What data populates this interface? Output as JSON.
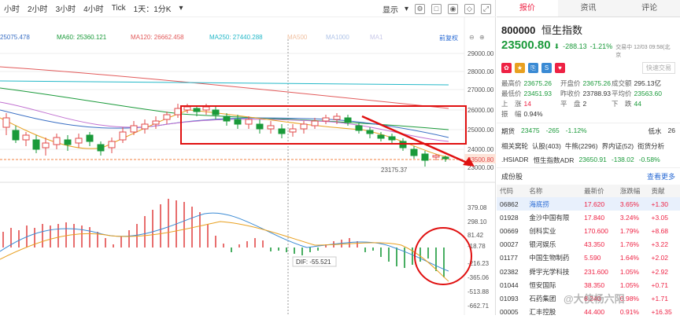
{
  "toolbar": {
    "timeframes": [
      "小时",
      "2小时",
      "3小时",
      "4小时",
      "Tick",
      "1天：1分K"
    ],
    "display_label": "显示",
    "icons": [
      "gear-icon",
      "square-icon",
      "camera-icon",
      "eraser-icon",
      "expand-icon"
    ]
  },
  "ma": {
    "v1": "25075.478",
    "ma60": "MA60: 25360.121",
    "ma120": "MA120: 26662.458",
    "ma250": "MA250: 27440.288",
    "ma500": "MA500",
    "ma1000": "MA1000",
    "ma1": "MA1",
    "fq": "前复权"
  },
  "price_axis": [
    "29000.00",
    "28000.00",
    "27000.00",
    "26000.00",
    "25000.00",
    "24000.00",
    "23500.80",
    "23000.00"
  ],
  "low_label": "23175.37",
  "macd_axis": [
    "379.08",
    "298.10",
    "81.42",
    "-18.78",
    "-216.23",
    "-365.06",
    "-513.88",
    "-662.71"
  ],
  "dif_label": "DIF: -55.521",
  "colors": {
    "up": "#e24a4a",
    "down": "#1a9a3a",
    "annot": "#e01010"
  },
  "right": {
    "tabs": [
      "报价",
      "资讯",
      "评论"
    ],
    "code": "800000",
    "name": "恒生指数",
    "price": "23500.80",
    "arrow": "⬇",
    "change": "-288.13",
    "change_pct": "-1.21%",
    "time": "交易中 12/03 09:58(北京",
    "search_placeholder": "快速交易",
    "quote": [
      [
        "最高价",
        "23675.26",
        "开盘价",
        "23675.26",
        "成交额",
        "295.13亿"
      ],
      [
        "最低价",
        "23451.93",
        "昨收价",
        "23788.93",
        "平均价",
        "23563.60"
      ],
      [
        "上　涨",
        "14",
        "平　盘",
        "2",
        "下　跌",
        "44"
      ],
      [
        "振　幅",
        "0.94%",
        "",
        "",
        "",
        ""
      ]
    ],
    "futures": {
      "label": "期货",
      "price": "23475",
      "chg": "-265",
      "pct": "-1.12%",
      "right": "低水",
      "rv": "26"
    },
    "related": [
      "相关窝轮",
      "认股(403)",
      "牛熊(2296)",
      "界内证(52)",
      "街货分析"
    ],
    "adr": {
      "code": ".HSIADR",
      "name": "恒生指数ADR",
      "price": "23650.91",
      "chg": "-138.02",
      "pct": "-0.58%"
    },
    "comp_title": "成份股",
    "comp_more": "查看更多",
    "cols": [
      "代码",
      "名称",
      "最新价",
      "涨跌幅",
      "贡献"
    ],
    "rows": [
      [
        "06862",
        "海底捞",
        "17.620",
        "3.65%",
        "+1.30"
      ],
      [
        "01928",
        "金沙中国有限",
        "17.840",
        "3.24%",
        "+3.05"
      ],
      [
        "00669",
        "创科实业",
        "170.600",
        "1.79%",
        "+8.68"
      ],
      [
        "00027",
        "银河娱乐",
        "43.350",
        "1.76%",
        "+3.22"
      ],
      [
        "01177",
        "中国生物制药",
        "5.590",
        "1.64%",
        "+2.02"
      ],
      [
        "02382",
        "舜宇光学科技",
        "231.600",
        "1.05%",
        "+2.92"
      ],
      [
        "01044",
        "恒安国际",
        "38.350",
        "1.05%",
        "+0.71"
      ],
      [
        "01093",
        "石药集团",
        "8.240",
        "0.98%",
        "+1.71"
      ],
      [
        "00005",
        "汇丰控股",
        "44.400",
        "0.91%",
        "+16.35"
      ]
    ]
  },
  "watermark": "@大侠杨六阳"
}
